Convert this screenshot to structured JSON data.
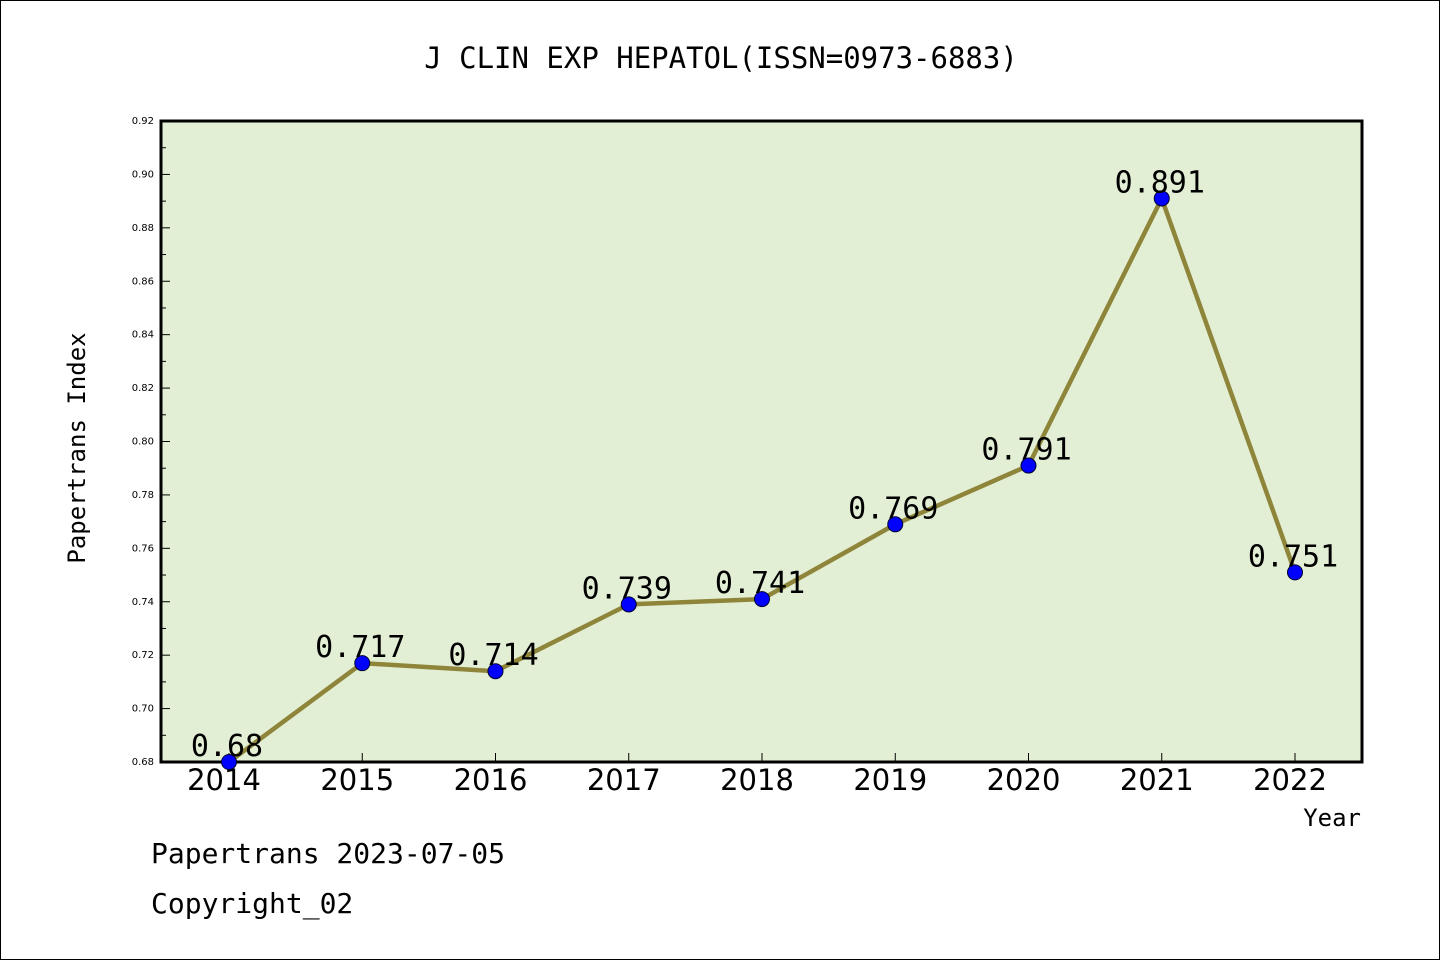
{
  "chart_data": {
    "type": "line",
    "title": "J CLIN EXP HEPATOL(ISSN=0973-6883)",
    "xlabel": "Year",
    "ylabel": "Papertrans Index",
    "categories": [
      "2014",
      "2015",
      "2016",
      "2017",
      "2018",
      "2019",
      "2020",
      "2021",
      "2022"
    ],
    "series": [
      {
        "values": [
          0.68,
          0.717,
          0.714,
          0.739,
          0.741,
          0.769,
          0.791,
          0.891,
          0.751
        ],
        "labels": [
          "0.68",
          "0.717",
          "0.714",
          "0.739",
          "0.741",
          "0.769",
          "0.791",
          "0.891",
          "0.751"
        ],
        "line_color": "#8f853a",
        "marker_color": "#0000ff"
      }
    ],
    "ylim": [
      0.68,
      0.92
    ],
    "yticks": [
      "0.68",
      "0.70",
      "0.72",
      "0.74",
      "0.76",
      "0.78",
      "0.80",
      "0.82",
      "0.84",
      "0.86",
      "0.88",
      "0.90",
      "0.92"
    ],
    "plot_background": "#e2efd5",
    "grid": false,
    "legend": "none"
  },
  "footer": {
    "line1": "Papertrans 2023-07-05",
    "line2": "Copyright_02"
  }
}
